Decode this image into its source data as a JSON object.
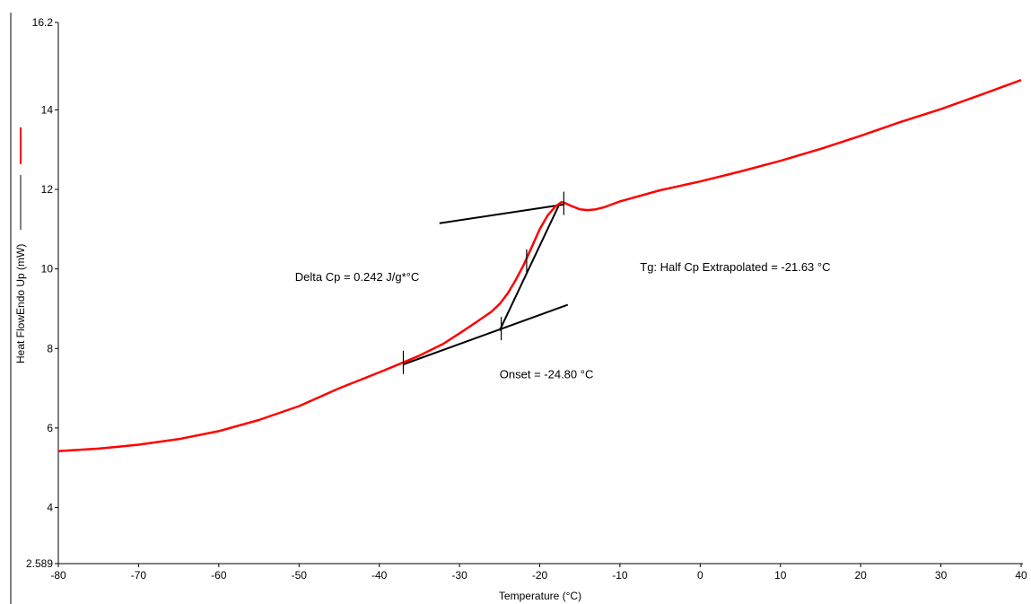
{
  "chart_data": {
    "type": "line",
    "xlabel": "Temperature (°C)",
    "ylabel": "Heat FlowEndo Up (mW)",
    "xlim": [
      -80,
      40
    ],
    "ylim": [
      2.589,
      16.2
    ],
    "x_ticks": [
      -80,
      -70,
      -60,
      -50,
      -40,
      -30,
      -20,
      -10,
      0,
      10,
      20,
      30,
      40
    ],
    "y_ticks": [
      2.589,
      4,
      6,
      8,
      10,
      12,
      14,
      16.2
    ],
    "grid": false,
    "legend": "left-vertical",
    "series": [
      {
        "color": "#ff0000",
        "x": [
          -80,
          -75,
          -70,
          -65,
          -60,
          -55,
          -50,
          -45,
          -40,
          -37,
          -35,
          -32,
          -30,
          -28,
          -26,
          -25,
          -24,
          -23,
          -22,
          -21,
          -20,
          -19,
          -18,
          -17.3,
          -17,
          -16,
          -15,
          -14,
          -13,
          -12,
          -10,
          -5,
          0,
          5,
          10,
          15,
          20,
          25,
          30,
          35,
          40
        ],
        "y": [
          5.42,
          5.48,
          5.58,
          5.72,
          5.92,
          6.2,
          6.55,
          7.0,
          7.4,
          7.65,
          7.82,
          8.12,
          8.38,
          8.65,
          8.93,
          9.12,
          9.38,
          9.72,
          10.1,
          10.55,
          11.0,
          11.35,
          11.58,
          11.68,
          11.67,
          11.58,
          11.5,
          11.48,
          11.5,
          11.55,
          11.7,
          11.98,
          12.2,
          12.45,
          12.72,
          13.02,
          13.35,
          13.7,
          14.02,
          14.38,
          14.75
        ]
      }
    ],
    "baseline_tangents": [
      {
        "x": [
          -37,
          -16.5
        ],
        "y": [
          7.6,
          9.1
        ]
      },
      {
        "x": [
          -32.5,
          -17
        ],
        "y": [
          11.15,
          11.62
        ]
      },
      {
        "x": [
          -25,
          -17.5
        ],
        "y": [
          8.45,
          11.65
        ]
      }
    ],
    "markers": [
      {
        "x": -37,
        "y": 7.65
      },
      {
        "x": -24.8,
        "y": 8.5
      },
      {
        "x": -21.63,
        "y": 10.2
      },
      {
        "x": -17,
        "y": 11.65
      }
    ],
    "annotations": [
      {
        "text": "Delta Cp = 0.242 J/g*°C",
        "x": -50.5,
        "y": 9.7
      },
      {
        "text": "Tg: Half Cp Extrapolated = -21.63 °C",
        "x": -7.5,
        "y": 9.95
      },
      {
        "text": "Onset = -24.80 °C",
        "x": -25,
        "y": 7.25
      }
    ],
    "colors": {
      "series": "#ff0000",
      "tangent": "#000000"
    }
  }
}
